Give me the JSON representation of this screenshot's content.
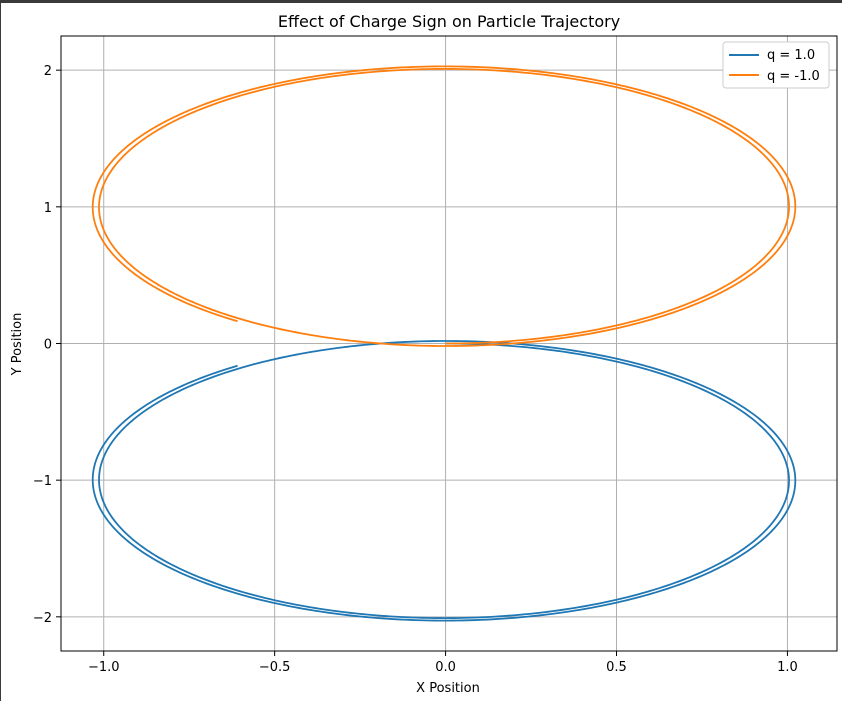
{
  "chart_data": {
    "type": "line",
    "title": "Effect of Charge Sign on Particle Trajectory",
    "xlabel": "X Position",
    "ylabel": "Y Position",
    "xlim": [
      -1.125,
      1.145
    ],
    "ylim": [
      -2.25,
      2.25
    ],
    "xticks": [
      -1.0,
      -0.5,
      0.0,
      0.5,
      1.0
    ],
    "xtick_labels": [
      "−1.0",
      "−0.5",
      "0.0",
      "0.5",
      "1.0"
    ],
    "yticks": [
      -2,
      -1,
      0,
      1,
      2
    ],
    "ytick_labels": [
      "−2",
      "−1",
      "0",
      "1",
      "2"
    ],
    "grid": true,
    "legend_position": "top-right",
    "series": [
      {
        "name": "q = 1.0",
        "color": "#1f77b4",
        "center_sign": -1,
        "spiral": {
          "turns": 1.9,
          "start": 0.0,
          "radius_start": 1.0,
          "radius_end": 1.035
        }
      },
      {
        "name": "q = -1.0",
        "color": "#ff7f0e",
        "center_sign": 1,
        "spiral": {
          "turns": 1.9,
          "start": 0.0,
          "radius_start": 1.0,
          "radius_end": 1.035
        }
      }
    ]
  }
}
